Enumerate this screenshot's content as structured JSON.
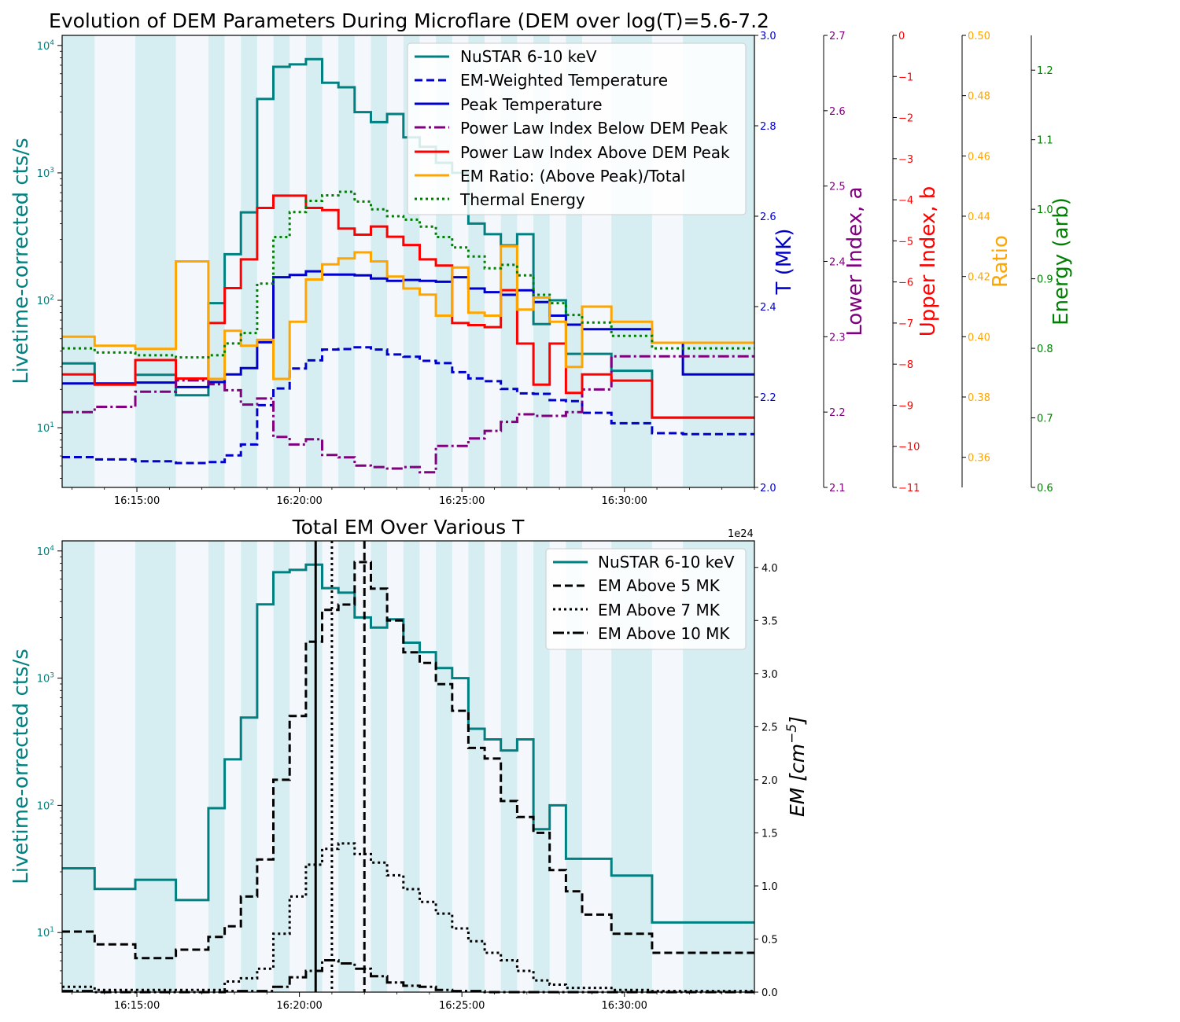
{
  "chart_data": [
    {
      "type": "line",
      "title": "Evolution of DEM Parameters During Microflare (DEM over log(T)=5.6-7.2",
      "x_ticks": [
        "16:15:00",
        "16:20:00",
        "16:25:00",
        "16:30:00"
      ],
      "x_tick_minutes": [
        15,
        20,
        25,
        30
      ],
      "xlim_minutes": [
        12.7,
        34.0
      ],
      "ylabel": "Livetime-corrected cts/s",
      "y_scale": "log",
      "ylim": [
        3.4,
        12000
      ],
      "y_ticks": [
        {
          "base": "10",
          "exp": "1",
          "value": 10
        },
        {
          "base": "10",
          "exp": "2",
          "value": 100
        },
        {
          "base": "10",
          "exp": "3",
          "value": 1000
        },
        {
          "base": "10",
          "exp": "4",
          "value": 10000
        }
      ],
      "shaded_intervals_minutes": [
        [
          12.7,
          13.7
        ],
        [
          14.95,
          16.2
        ],
        [
          17.2,
          17.7
        ],
        [
          18.2,
          18.7
        ],
        [
          19.2,
          19.7
        ],
        [
          20.2,
          20.7
        ],
        [
          21.2,
          21.7
        ],
        [
          22.2,
          22.7
        ],
        [
          23.2,
          23.7
        ],
        [
          24.2,
          24.7
        ],
        [
          25.2,
          25.7
        ],
        [
          26.2,
          26.7
        ],
        [
          27.2,
          27.7
        ],
        [
          28.2,
          28.7
        ],
        [
          29.6,
          30.85
        ],
        [
          31.8,
          34.0
        ]
      ],
      "x_edges_minutes": [
        12.7,
        13.7,
        14.95,
        16.2,
        17.2,
        17.7,
        18.2,
        18.7,
        19.2,
        19.7,
        20.2,
        20.7,
        21.2,
        21.7,
        22.2,
        22.7,
        23.2,
        23.7,
        24.2,
        24.7,
        25.2,
        25.7,
        26.2,
        26.7,
        27.2,
        27.7,
        28.2,
        28.7,
        29.6,
        30.85,
        31.8,
        34.0
      ],
      "legend_position": "top-right",
      "series": [
        {
          "name": "NuSTAR 6-10 keV",
          "axis": "left",
          "color": "#008080",
          "style": "solid",
          "values": [
            32,
            22,
            26,
            18,
            95,
            230,
            490,
            3800,
            6800,
            7100,
            7800,
            5100,
            4700,
            3000,
            2500,
            2900,
            1900,
            1600,
            1200,
            1000,
            400,
            330,
            270,
            330,
            65,
            100,
            38,
            38,
            28,
            12,
            12
          ]
        },
        {
          "name": "EM-Weighted Temperature",
          "axis": "T",
          "color": "#0000cc",
          "style": "dashed",
          "values": [
            2.067,
            2.062,
            2.058,
            2.054,
            2.056,
            2.071,
            2.095,
            2.182,
            2.219,
            2.263,
            2.281,
            2.305,
            2.306,
            2.31,
            2.305,
            2.294,
            2.289,
            2.28,
            2.275,
            2.255,
            2.241,
            2.235,
            2.218,
            2.208,
            2.207,
            2.193,
            2.191,
            2.165,
            2.142,
            2.12,
            2.118
          ]
        },
        {
          "name": "Peak Temperature",
          "axis": "T",
          "color": "#0000cc",
          "style": "solid",
          "values": [
            2.23,
            2.23,
            2.232,
            2.222,
            2.233,
            2.25,
            2.264,
            2.321,
            2.465,
            2.47,
            2.478,
            2.471,
            2.471,
            2.469,
            2.462,
            2.457,
            2.459,
            2.457,
            2.455,
            2.465,
            2.44,
            2.432,
            2.426,
            2.436,
            2.41,
            2.38,
            2.36,
            2.35,
            2.35,
            2.32,
            2.25
          ]
        },
        {
          "name": "Power Law Index Below DEM Peak",
          "axis": "a",
          "color": "#800080",
          "style": "dashdot",
          "values": [
            2.2,
            2.207,
            2.227,
            2.242,
            2.237,
            2.229,
            2.21,
            2.218,
            2.167,
            2.157,
            2.164,
            2.143,
            2.14,
            2.129,
            2.127,
            2.125,
            2.127,
            2.12,
            2.155,
            2.155,
            2.165,
            2.175,
            2.187,
            2.197,
            2.195,
            2.195,
            2.2,
            2.23,
            2.274,
            2.274,
            2.274
          ]
        },
        {
          "name": "Power Law Index Above DEM Peak",
          "axis": "b",
          "color": "#ff0000",
          "style": "solid",
          "values": [
            -8.25,
            -8.5,
            -7.9,
            -8.35,
            -7.0,
            -6.15,
            -5.45,
            -4.2,
            -3.9,
            -3.9,
            -4.2,
            -4.25,
            -4.7,
            -4.85,
            -4.65,
            -4.9,
            -5.1,
            -5.45,
            -5.6,
            -7.0,
            -7.05,
            -7.1,
            -6.2,
            -7.5,
            -8.5,
            -7.5,
            -8.7,
            -8.25,
            -8.4,
            -9.3,
            -9.3
          ]
        },
        {
          "name": "EM Ratio: (Above Peak)/Total",
          "axis": "ratio",
          "color": "#ffa500",
          "style": "solid",
          "values": [
            0.4,
            0.397,
            0.396,
            0.425,
            0.386,
            0.402,
            0.397,
            0.399,
            0.386,
            0.405,
            0.419,
            0.424,
            0.426,
            0.428,
            0.425,
            0.42,
            0.416,
            0.414,
            0.407,
            0.423,
            0.408,
            0.407,
            0.43,
            0.409,
            0.413,
            0.405,
            0.39,
            0.41,
            0.405,
            0.398,
            0.398
          ]
        },
        {
          "name": "Thermal Energy",
          "axis": "energy",
          "color": "#008000",
          "style": "dotted",
          "values": [
            0.8,
            0.794,
            0.79,
            0.787,
            0.79,
            0.807,
            0.822,
            0.893,
            0.96,
            0.996,
            1.012,
            1.02,
            1.025,
            1.011,
            1.0,
            0.99,
            0.985,
            0.975,
            0.96,
            0.945,
            0.932,
            0.915,
            0.92,
            0.905,
            0.877,
            0.865,
            0.848,
            0.837,
            0.818,
            0.8,
            0.8
          ]
        }
      ],
      "right_axes": [
        {
          "id": "T",
          "label": "T (MK)",
          "color": "#0000cc",
          "range": [
            2.0,
            3.0
          ],
          "ticks": [
            "2.0",
            "2.2",
            "2.4",
            "2.6",
            "2.8",
            "3.0"
          ]
        },
        {
          "id": "a",
          "label": "Lower Index, a",
          "color": "#800080",
          "range": [
            2.1,
            2.7
          ],
          "ticks": [
            "2.1",
            "2.2",
            "2.3",
            "2.4",
            "2.5",
            "2.6",
            "2.7"
          ]
        },
        {
          "id": "b",
          "label": "Upper Index, b",
          "color": "#ff0000",
          "range": [
            -11,
            0
          ],
          "ticks": [
            "−11",
            "−10",
            "−9",
            "−8",
            "−7",
            "−6",
            "−5",
            "−4",
            "−3",
            "−2",
            "−1",
            "0"
          ]
        },
        {
          "id": "ratio",
          "label": "Ratio",
          "color": "#ffa500",
          "range": [
            0.35,
            0.5
          ],
          "ticks": [
            "0.36",
            "0.38",
            "0.40",
            "0.42",
            "0.44",
            "0.46",
            "0.48",
            "0.50"
          ],
          "tick_values": [
            0.36,
            0.38,
            0.4,
            0.42,
            0.44,
            0.46,
            0.48,
            0.5
          ]
        },
        {
          "id": "energy",
          "label": "Energy (arb)",
          "color": "#008000",
          "range": [
            0.6,
            1.25
          ],
          "ticks": [
            "0.6",
            "0.7",
            "0.8",
            "0.9",
            "1.0",
            "1.1",
            "1.2"
          ],
          "tick_values": [
            0.6,
            0.7,
            0.8,
            0.9,
            1.0,
            1.1,
            1.2
          ]
        }
      ]
    },
    {
      "type": "line",
      "title": "Total EM Over Various T",
      "x_ticks": [
        "16:15:00",
        "16:20:00",
        "16:25:00",
        "16:30:00"
      ],
      "x_tick_minutes": [
        15,
        20,
        25,
        30
      ],
      "ylabel": "Livetime-orrected cts/s",
      "y_scale": "log",
      "right_axis": {
        "label": "EM [cm^-5]",
        "label_main": "EM [cm",
        "label_sup": "−5",
        "label_close": "]",
        "offset_text": "1e24",
        "range": [
          0,
          4.25
        ],
        "ticks": [
          "0.0",
          "0.5",
          "1.0",
          "1.5",
          "2.0",
          "2.5",
          "3.0",
          "3.5",
          "4.0"
        ],
        "tick_values": [
          0,
          0.5,
          1.0,
          1.5,
          2.0,
          2.5,
          3.0,
          3.5,
          4.0
        ]
      },
      "legend_position": "top-right",
      "vertical_lines": [
        {
          "x_minutes": 20.5,
          "style": "solid",
          "color": "#000000"
        },
        {
          "x_minutes": 21.0,
          "style": "dotted",
          "color": "#000000"
        },
        {
          "x_minutes": 22.0,
          "style": "dashed",
          "color": "#000000"
        }
      ],
      "series": [
        {
          "name": "NuSTAR 6-10 keV",
          "axis": "left",
          "color": "#008080",
          "style": "solid",
          "values": [
            32,
            22,
            26,
            18,
            95,
            230,
            490,
            3800,
            6800,
            7100,
            7800,
            5100,
            4700,
            3000,
            2500,
            2900,
            1900,
            1600,
            1200,
            1000,
            400,
            330,
            270,
            330,
            65,
            100,
            38,
            38,
            28,
            12,
            12
          ]
        },
        {
          "name": "EM Above 5 MK",
          "axis": "right",
          "color": "#000000",
          "style": "dashed",
          "values": [
            0.57,
            0.45,
            0.32,
            0.4,
            0.52,
            0.62,
            0.9,
            1.25,
            2.0,
            2.6,
            3.3,
            3.6,
            3.65,
            4.05,
            3.8,
            3.5,
            3.2,
            3.1,
            2.9,
            2.65,
            2.3,
            2.2,
            1.8,
            1.65,
            1.5,
            1.15,
            0.95,
            0.73,
            0.55,
            0.37,
            0.37
          ]
        },
        {
          "name": "EM Above 7 MK",
          "axis": "right",
          "color": "#000000",
          "style": "dotted",
          "values": [
            0.05,
            0.02,
            0.02,
            0.02,
            0.02,
            0.1,
            0.13,
            0.22,
            0.55,
            0.9,
            1.2,
            1.35,
            1.4,
            1.3,
            1.22,
            1.1,
            0.97,
            0.85,
            0.74,
            0.6,
            0.48,
            0.37,
            0.3,
            0.2,
            0.11,
            0.07,
            0.04,
            0.04,
            0.02,
            0.01,
            0.01
          ]
        },
        {
          "name": "EM Above 10 MK",
          "axis": "right",
          "color": "#000000",
          "style": "dashdot",
          "values": [
            0.01,
            0.0,
            0.0,
            0.0,
            0.0,
            0.01,
            0.01,
            0.01,
            0.05,
            0.14,
            0.2,
            0.3,
            0.27,
            0.22,
            0.15,
            0.09,
            0.06,
            0.05,
            0.02,
            0.01,
            0.01,
            0.0,
            0.0,
            0.0,
            0.0,
            0.0,
            0.0,
            0.0,
            0.0,
            0.0,
            0.0
          ]
        }
      ]
    }
  ]
}
